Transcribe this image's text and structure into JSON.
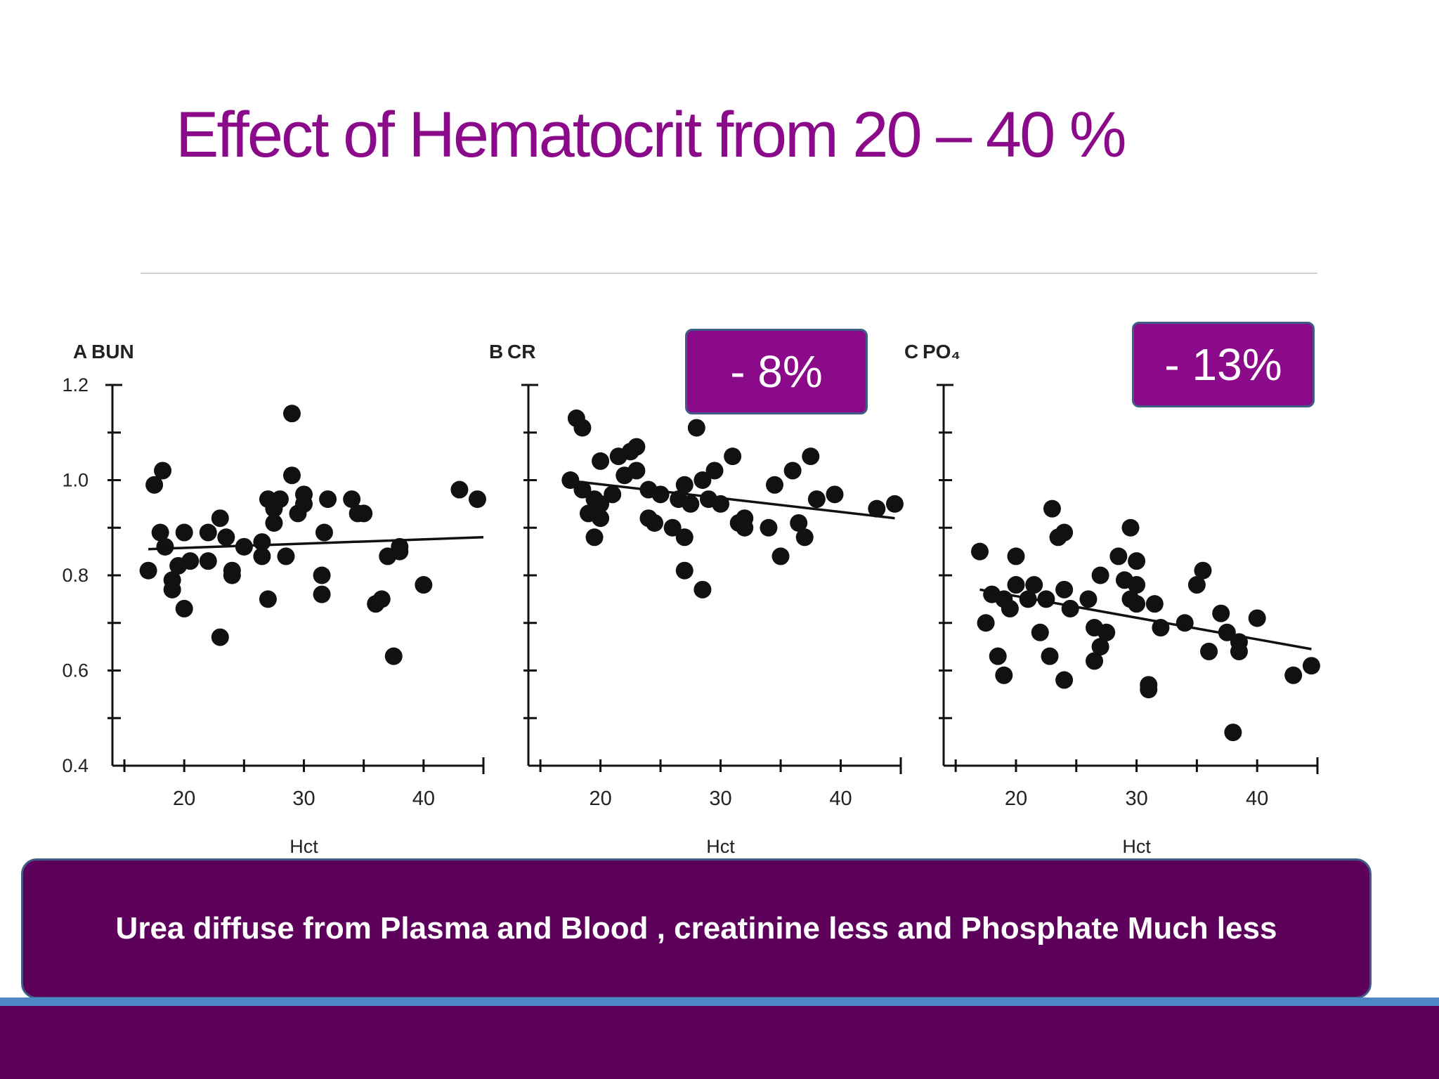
{
  "slide": {
    "title": "Effect of Hematocrit  from 20 – 40 %",
    "caption": "Urea diffuse from Plasma and Blood , creatinine less and Phosphate Much less",
    "badges": {
      "cr": "- 8%",
      "po4": "- 13%"
    }
  },
  "colors": {
    "title": "#8a0a8a",
    "badge": "#8a0a8a",
    "caption_box": "#5c005c",
    "footer": "#5c005c",
    "footer_accent": "#4f86c6"
  },
  "chart_data": [
    {
      "type": "scatter",
      "panel_label": "A",
      "title": "BUN",
      "xlabel": "Hct",
      "ylabel": "",
      "xlim": [
        14,
        45
      ],
      "ylim": [
        0.4,
        1.2
      ],
      "x_ticks": [
        "20",
        "30",
        "40"
      ],
      "y_ticks": [
        "1.2",
        "1.0",
        "0.8",
        "0.6",
        "0.4"
      ],
      "trend": [
        [
          17,
          0.855
        ],
        [
          45,
          0.88
        ]
      ],
      "points": [
        [
          17,
          0.81
        ],
        [
          17.5,
          0.99
        ],
        [
          18.2,
          1.02
        ],
        [
          18,
          0.89
        ],
        [
          18.4,
          0.86
        ],
        [
          19,
          0.79
        ],
        [
          19,
          0.77
        ],
        [
          19.5,
          0.82
        ],
        [
          20,
          0.89
        ],
        [
          20,
          0.73
        ],
        [
          20.5,
          0.83
        ],
        [
          22,
          0.83
        ],
        [
          22,
          0.89
        ],
        [
          23,
          0.67
        ],
        [
          23,
          0.92
        ],
        [
          23.5,
          0.88
        ],
        [
          24,
          0.81
        ],
        [
          24,
          0.8
        ],
        [
          25,
          0.86
        ],
        [
          26.5,
          0.87
        ],
        [
          26.5,
          0.84
        ],
        [
          27,
          0.96
        ],
        [
          27,
          0.75
        ],
        [
          27.5,
          0.94
        ],
        [
          27.5,
          0.91
        ],
        [
          28,
          0.96
        ],
        [
          28.5,
          0.84
        ],
        [
          29,
          1.14
        ],
        [
          29,
          1.01
        ],
        [
          29.5,
          0.93
        ],
        [
          30,
          0.97
        ],
        [
          30,
          0.95
        ],
        [
          31.5,
          0.8
        ],
        [
          31.5,
          0.76
        ],
        [
          31.7,
          0.89
        ],
        [
          32,
          0.96
        ],
        [
          34,
          0.96
        ],
        [
          34.5,
          0.93
        ],
        [
          35,
          0.93
        ],
        [
          36,
          0.74
        ],
        [
          36.5,
          0.75
        ],
        [
          37,
          0.84
        ],
        [
          37.5,
          0.63
        ],
        [
          38,
          0.86
        ],
        [
          38,
          0.85
        ],
        [
          40,
          0.78
        ],
        [
          43,
          0.98
        ],
        [
          44.5,
          0.96
        ]
      ]
    },
    {
      "type": "scatter",
      "panel_label": "B",
      "title": "CR",
      "xlabel": "Hct",
      "ylabel": "",
      "xlim": [
        14,
        45
      ],
      "ylim": [
        0.4,
        1.2
      ],
      "x_ticks": [
        "20",
        "30",
        "40"
      ],
      "y_ticks": [],
      "trend": [
        [
          17,
          1.0
        ],
        [
          44.5,
          0.92
        ]
      ],
      "points": [
        [
          18,
          1.13
        ],
        [
          18.5,
          1.11
        ],
        [
          17.5,
          1.0
        ],
        [
          18.5,
          0.98
        ],
        [
          19,
          0.93
        ],
        [
          19.5,
          0.96
        ],
        [
          19.5,
          0.88
        ],
        [
          20,
          1.04
        ],
        [
          20,
          0.95
        ],
        [
          20,
          0.92
        ],
        [
          21,
          0.97
        ],
        [
          21.5,
          1.05
        ],
        [
          22,
          1.01
        ],
        [
          22.5,
          1.06
        ],
        [
          23,
          1.02
        ],
        [
          23,
          1.07
        ],
        [
          24,
          0.98
        ],
        [
          24,
          0.92
        ],
        [
          24.5,
          0.91
        ],
        [
          25,
          0.97
        ],
        [
          26,
          0.9
        ],
        [
          26.5,
          0.96
        ],
        [
          27,
          0.99
        ],
        [
          27,
          0.81
        ],
        [
          27,
          0.88
        ],
        [
          27.5,
          0.95
        ],
        [
          28,
          1.11
        ],
        [
          28.5,
          1.0
        ],
        [
          28.5,
          0.77
        ],
        [
          29,
          0.96
        ],
        [
          29.5,
          1.02
        ],
        [
          30,
          0.95
        ],
        [
          31,
          1.05
        ],
        [
          31.5,
          0.91
        ],
        [
          32,
          0.92
        ],
        [
          32,
          0.9
        ],
        [
          34,
          0.9
        ],
        [
          34.5,
          0.99
        ],
        [
          35,
          0.84
        ],
        [
          36,
          1.02
        ],
        [
          36.5,
          0.91
        ],
        [
          37,
          0.88
        ],
        [
          37.5,
          1.05
        ],
        [
          38,
          0.96
        ],
        [
          39.5,
          0.97
        ],
        [
          43,
          0.94
        ],
        [
          44.5,
          0.95
        ]
      ]
    },
    {
      "type": "scatter",
      "panel_label": "C",
      "title": "PO₄",
      "xlabel": "Hct",
      "ylabel": "",
      "xlim": [
        14,
        45
      ],
      "ylim": [
        0.4,
        1.2
      ],
      "x_ticks": [
        "20",
        "30",
        "40"
      ],
      "y_ticks": [],
      "trend": [
        [
          17,
          0.77
        ],
        [
          44.5,
          0.645
        ]
      ],
      "points": [
        [
          17,
          0.85
        ],
        [
          17.5,
          0.7
        ],
        [
          18,
          0.76
        ],
        [
          18.5,
          0.63
        ],
        [
          19,
          0.75
        ],
        [
          19,
          0.59
        ],
        [
          19.5,
          0.73
        ],
        [
          20,
          0.78
        ],
        [
          20,
          0.84
        ],
        [
          21,
          0.75
        ],
        [
          21.5,
          0.78
        ],
        [
          22,
          0.68
        ],
        [
          22.5,
          0.75
        ],
        [
          22.8,
          0.63
        ],
        [
          23,
          0.94
        ],
        [
          23.5,
          0.88
        ],
        [
          24,
          0.89
        ],
        [
          24,
          0.77
        ],
        [
          24,
          0.58
        ],
        [
          24.5,
          0.73
        ],
        [
          26,
          0.75
        ],
        [
          26.5,
          0.69
        ],
        [
          26.5,
          0.62
        ],
        [
          27,
          0.8
        ],
        [
          27,
          0.65
        ],
        [
          27.5,
          0.68
        ],
        [
          28.5,
          0.84
        ],
        [
          29,
          0.79
        ],
        [
          29.5,
          0.9
        ],
        [
          29.5,
          0.75
        ],
        [
          30,
          0.83
        ],
        [
          30,
          0.78
        ],
        [
          30,
          0.74
        ],
        [
          31,
          0.56
        ],
        [
          31,
          0.57
        ],
        [
          31.5,
          0.74
        ],
        [
          32,
          0.69
        ],
        [
          34,
          0.7
        ],
        [
          35.5,
          0.81
        ],
        [
          35,
          0.78
        ],
        [
          36,
          0.64
        ],
        [
          37,
          0.72
        ],
        [
          37.5,
          0.68
        ],
        [
          38,
          0.47
        ],
        [
          38.5,
          0.66
        ],
        [
          38.5,
          0.64
        ],
        [
          40,
          0.71
        ],
        [
          43,
          0.59
        ],
        [
          44.5,
          0.61
        ]
      ]
    }
  ]
}
